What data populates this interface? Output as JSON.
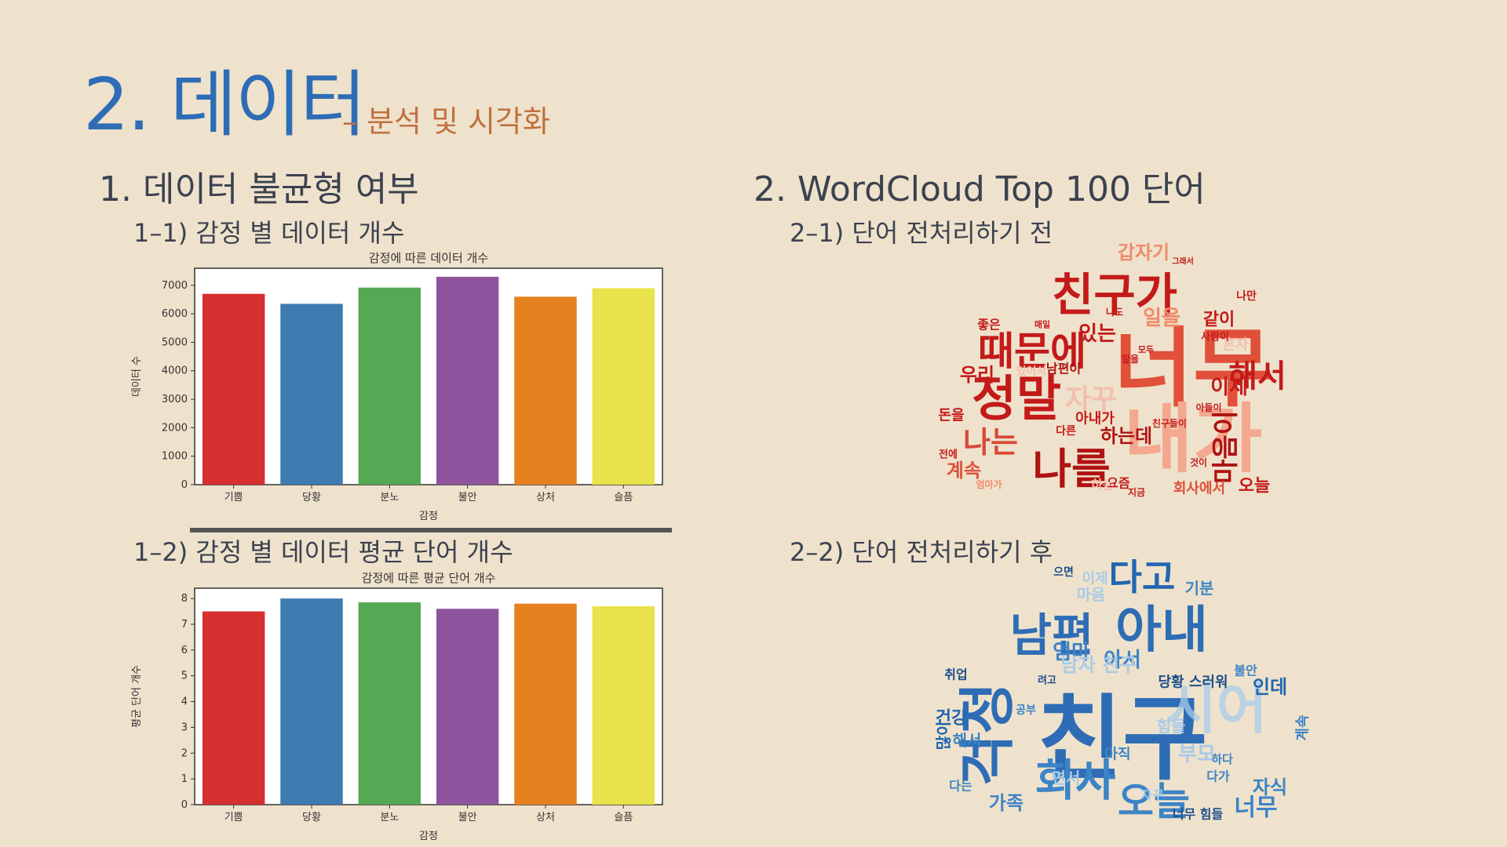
{
  "slide": {
    "title": "2. 데이터",
    "subtitle": "– 분석 및 시각화",
    "left_heading": "1. 데이터 불균형 여부",
    "left_sub1": "1–1) 감정 별 데이터 개수",
    "left_sub2": "1–2) 감정 별 데이터 평균 단어 개수",
    "right_heading": "2. WordCloud Top 100 단어",
    "right_sub1": "2–1) 단어 전처리하기 전",
    "right_sub2": "2–2) 단어 전처리하기 후"
  },
  "colors": {
    "기쁨": "#d62f2f",
    "당황": "#3f7bb2",
    "분노": "#55a854",
    "불안": "#8e559e",
    "상처": "#e5811f",
    "슬픔": "#e8e34a"
  },
  "chart_data": [
    {
      "type": "bar",
      "title": "감정에 따른 데이터 개수",
      "xlabel": "감정",
      "ylabel": "데이터 수",
      "categories": [
        "기쁨",
        "당황",
        "분노",
        "불안",
        "상처",
        "슬픔"
      ],
      "values": [
        6700,
        6350,
        6920,
        7300,
        6600,
        6900
      ],
      "ylim": [
        0,
        7600
      ],
      "yticks": [
        0,
        1000,
        2000,
        3000,
        4000,
        5000,
        6000,
        7000
      ],
      "grid": false
    },
    {
      "type": "bar",
      "title": "감정에 따른 평균 단어 개수",
      "xlabel": "감정",
      "ylabel": "평균 단어 개수",
      "categories": [
        "기쁨",
        "당황",
        "분노",
        "불안",
        "상처",
        "슬픔"
      ],
      "values": [
        7.5,
        8.0,
        7.85,
        7.6,
        7.8,
        7.7
      ],
      "ylim": [
        0,
        8.4
      ],
      "yticks": [
        0,
        1,
        2,
        3,
        4,
        5,
        6,
        7,
        8
      ],
      "grid": false
    }
  ],
  "wordcloud_before": {
    "words": [
      {
        "t": "너무",
        "c": "#e0503a"
      },
      {
        "t": "내가",
        "c": "#f3a88f"
      },
      {
        "t": "친구가",
        "c": "#c41a1a"
      },
      {
        "t": "정말",
        "c": "#c41a1a"
      },
      {
        "t": "때문에",
        "c": "#c41a1a"
      },
      {
        "t": "나를",
        "c": "#b01212"
      },
      {
        "t": "해서",
        "c": "#c41a1a"
      },
      {
        "t": "갑자기",
        "c": "#f08a6a"
      },
      {
        "t": "마음이",
        "c": "#b01212"
      },
      {
        "t": "나는",
        "c": "#d84a38"
      },
      {
        "t": "자꾸",
        "c": "#f3bfae"
      },
      {
        "t": "하는데",
        "c": "#b01212"
      },
      {
        "t": "있는",
        "c": "#c41a1a"
      },
      {
        "t": "일을",
        "c": "#f08a6a"
      },
      {
        "t": "같이",
        "c": "#c41a1a"
      },
      {
        "t": "이제",
        "c": "#c41a1a"
      },
      {
        "t": "아내가",
        "c": "#c41a1a"
      },
      {
        "t": "우리",
        "c": "#c41a1a"
      },
      {
        "t": "계속",
        "c": "#e0503a"
      },
      {
        "t": "오늘",
        "c": "#c41a1a"
      },
      {
        "t": "회사에서",
        "c": "#e0503a"
      },
      {
        "t": "혼자",
        "c": "#f3bfae"
      },
      {
        "t": "돈을",
        "c": "#c41a1a"
      },
      {
        "t": "남편이",
        "c": "#b01212"
      },
      {
        "t": "좋은",
        "c": "#c41a1a"
      },
      {
        "t": "요즘",
        "c": "#c41a1a"
      },
      {
        "t": "사람이",
        "c": "#c41a1a"
      },
      {
        "t": "나도",
        "c": "#c41a1a"
      },
      {
        "t": "있어서",
        "c": "#f3bfae"
      },
      {
        "t": "하는",
        "c": "#f3bfae"
      },
      {
        "t": "나만",
        "c": "#c41a1a"
      },
      {
        "t": "전에",
        "c": "#c41a1a"
      },
      {
        "t": "친구들이",
        "c": "#c41a1a"
      },
      {
        "t": "아들이",
        "c": "#c41a1a"
      },
      {
        "t": "말을",
        "c": "#c41a1a"
      },
      {
        "t": "모두",
        "c": "#c41a1a"
      },
      {
        "t": "매일",
        "c": "#c41a1a"
      },
      {
        "t": "다른",
        "c": "#c41a1a"
      },
      {
        "t": "것이",
        "c": "#c41a1a"
      },
      {
        "t": "지금",
        "c": "#c41a1a"
      },
      {
        "t": "그래서",
        "c": "#c41a1a"
      },
      {
        "t": "엄마가",
        "c": "#f08a6a"
      }
    ]
  },
  "wordcloud_after": {
    "words": [
      {
        "t": "친구",
        "c": "#2e6db5"
      },
      {
        "t": "남편",
        "c": "#2e6db5"
      },
      {
        "t": "아내",
        "c": "#2e6db5"
      },
      {
        "t": "다고",
        "c": "#2266b0"
      },
      {
        "t": "회사",
        "c": "#3c84c6"
      },
      {
        "t": "오늘",
        "c": "#3c84c6"
      },
      {
        "t": "시어",
        "c": "#a8cbe8"
      },
      {
        "t": "걱정",
        "c": "#2e6db5"
      },
      {
        "t": "부모",
        "c": "#a8cbe8"
      },
      {
        "t": "엄마",
        "c": "#3c84c6"
      },
      {
        "t": "아서",
        "c": "#3c84c6"
      },
      {
        "t": "인데",
        "c": "#2266b0"
      },
      {
        "t": "자식",
        "c": "#3c84c6"
      },
      {
        "t": "너무",
        "c": "#3c84c6"
      },
      {
        "t": "건강",
        "c": "#2266b0"
      },
      {
        "t": "해서",
        "c": "#3c84c6"
      },
      {
        "t": "가족",
        "c": "#3c84c6"
      },
      {
        "t": "기분",
        "c": "#3c84c6"
      },
      {
        "t": "마음",
        "c": "#a8cbe8"
      },
      {
        "t": "이제",
        "c": "#a8cbe8"
      },
      {
        "t": "당황 스러워",
        "c": "#1d4f8a"
      },
      {
        "t": "면서",
        "c": "#a8cbe8"
      },
      {
        "t": "취업",
        "c": "#1d4f8a"
      },
      {
        "t": "불안",
        "c": "#3c84c6"
      },
      {
        "t": "힘들",
        "c": "#a8cbe8"
      },
      {
        "t": "남자 친구",
        "c": "#a8cbe8"
      },
      {
        "t": "으면",
        "c": "#1d4f8a"
      },
      {
        "t": "아직",
        "c": "#3c84c6"
      },
      {
        "t": "다가",
        "c": "#3c84c6"
      },
      {
        "t": "자꾸",
        "c": "#a8cbe8"
      },
      {
        "t": "계속",
        "c": "#3c84c6"
      },
      {
        "t": "너무 힘들",
        "c": "#1d4f8a"
      },
      {
        "t": "공부",
        "c": "#3c84c6"
      },
      {
        "t": "하다",
        "c": "#3c84c6"
      },
      {
        "t": "려고",
        "c": "#1d4f8a"
      },
      {
        "t": "많이",
        "c": "#2266b0"
      },
      {
        "t": "다는",
        "c": "#3c84c6"
      }
    ]
  }
}
